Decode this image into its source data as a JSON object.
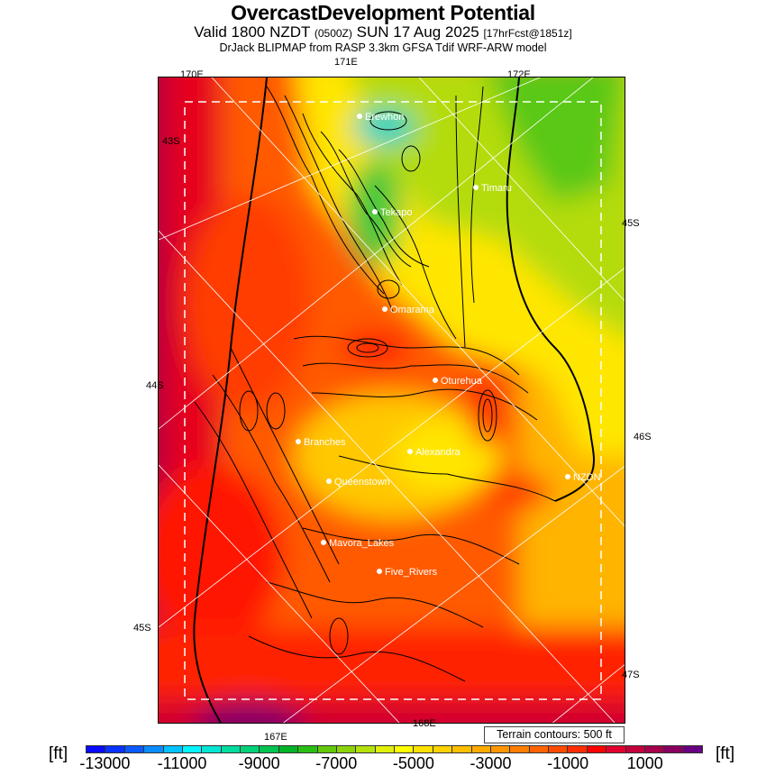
{
  "header": {
    "title": "OvercastDevelopment Potential",
    "valid_main": "Valid 1800 NZDT",
    "valid_z": "(0500Z)",
    "valid_date": "SUN 17 Aug 2025",
    "valid_fcst": "[17hrFcst@1851z]",
    "model": "DrJack BLIPMAP from RASP 3.3km GFSA Tdif WRF-ARW model"
  },
  "map": {
    "lon_labels": [
      "170E",
      "171E",
      "172E",
      "167E",
      "168E"
    ],
    "lat_labels": [
      "43S",
      "44S",
      "45S",
      "45S",
      "46S",
      "47S"
    ],
    "cities": [
      {
        "name": "Erewhon"
      },
      {
        "name": "Timaru"
      },
      {
        "name": "Tekapo"
      },
      {
        "name": "Omarama"
      },
      {
        "name": "Oturehua"
      },
      {
        "name": "Branches"
      },
      {
        "name": "Alexandra"
      },
      {
        "name": "Queenstown"
      },
      {
        "name": "NZDN"
      },
      {
        "name": "Mavora_Lakes"
      },
      {
        "name": "Five_Rivers"
      }
    ],
    "terrain_note": "Terrain contours: 500 ft"
  },
  "colorbar": {
    "unit": "[ft]",
    "labels": [
      "-13000",
      "-11000",
      "-9000",
      "-7000",
      "-5000",
      "-3000",
      "-1000",
      "1000"
    ],
    "colors": [
      "#0a0aff",
      "#0a32ff",
      "#0a5aff",
      "#0a8cff",
      "#00c3ff",
      "#00f5ff",
      "#00e6d2",
      "#00dca0",
      "#00d278",
      "#00c350",
      "#00b428",
      "#28be14",
      "#64c80a",
      "#8cd20a",
      "#b4e10a",
      "#e1f00a",
      "#ffff00",
      "#ffe100",
      "#ffd200",
      "#ffbe00",
      "#ffaa00",
      "#ff9600",
      "#ff7d00",
      "#ff6400",
      "#ff4b00",
      "#ff2d00",
      "#ff0000",
      "#e1002d",
      "#c3003c",
      "#a5004b",
      "#87005f",
      "#690082"
    ]
  }
}
